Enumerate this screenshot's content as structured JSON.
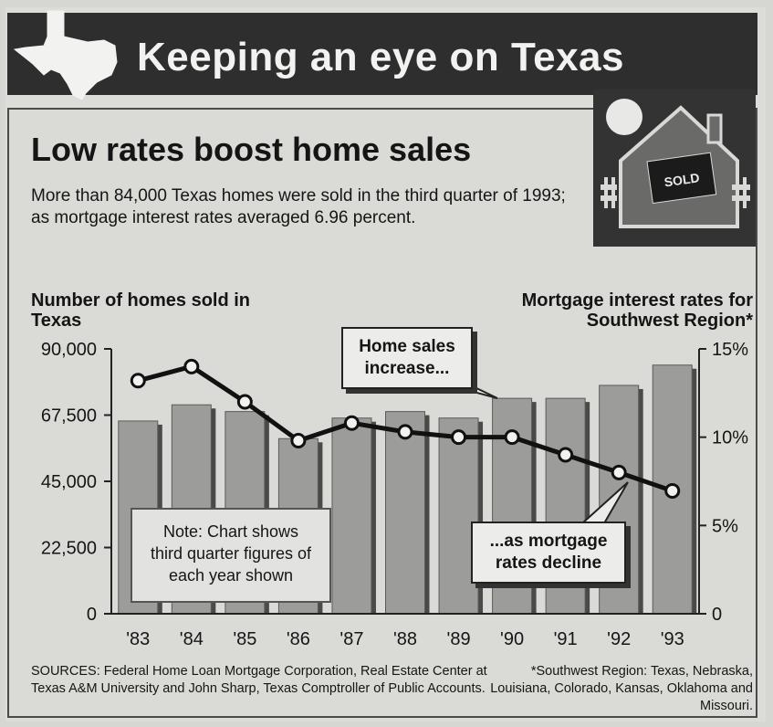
{
  "banner": {
    "title": "Keeping an eye on Texas"
  },
  "headline": "Low rates boost home sales",
  "subtitle": "More than 84,000 Texas homes were sold in the third quarter of 1993; as mortgage interest rates averaged 6.96 percent.",
  "house_sign": "SOLD",
  "left_axis_title": "Number of homes sold in Texas",
  "right_axis_title": "Mortgage interest rates for Southwest Region*",
  "callouts": {
    "sales": "Home sales increase...",
    "rates": "...as mortgage rates decline",
    "note": "Note: Chart shows third quarter figures of each year shown"
  },
  "sources": "SOURCES: Federal Home Loan Mortgage Corporation, Real Estate Center at Texas A&M University and John Sharp, Texas Comptroller of Public Accounts.",
  "footnote": "*Southwest Region: Texas, Nebraska, Louisiana, Colorado, Kansas, Oklahoma and Missouri.",
  "colors": {
    "bar": "#9c9c9a",
    "line": "#111111",
    "banner": "#2e2e2e",
    "background": "#dadad6"
  },
  "chart_data": {
    "type": "bar",
    "categories": [
      "'83",
      "'84",
      "'85",
      "'86",
      "'87",
      "'88",
      "'89",
      "'90",
      "'91",
      "'92",
      "'93"
    ],
    "series": [
      {
        "type": "bar",
        "axis": "left",
        "values": [
          65500,
          71000,
          68700,
          59500,
          66500,
          68700,
          66500,
          73200,
          73200,
          77600,
          84500
        ]
      },
      {
        "type": "line",
        "axis": "right",
        "values": [
          13.2,
          14.0,
          12.0,
          9.8,
          10.8,
          10.3,
          10.0,
          10.0,
          9.0,
          8.0,
          6.96
        ]
      }
    ],
    "y_left": {
      "min": 0,
      "max": 90000,
      "ticks": [
        "0",
        "22,500",
        "45,000",
        "67,500",
        "90,000"
      ]
    },
    "y_right": {
      "min": 0,
      "max": 15,
      "ticks": [
        "0",
        "5%",
        "10%",
        "15%"
      ]
    },
    "grid": false
  }
}
